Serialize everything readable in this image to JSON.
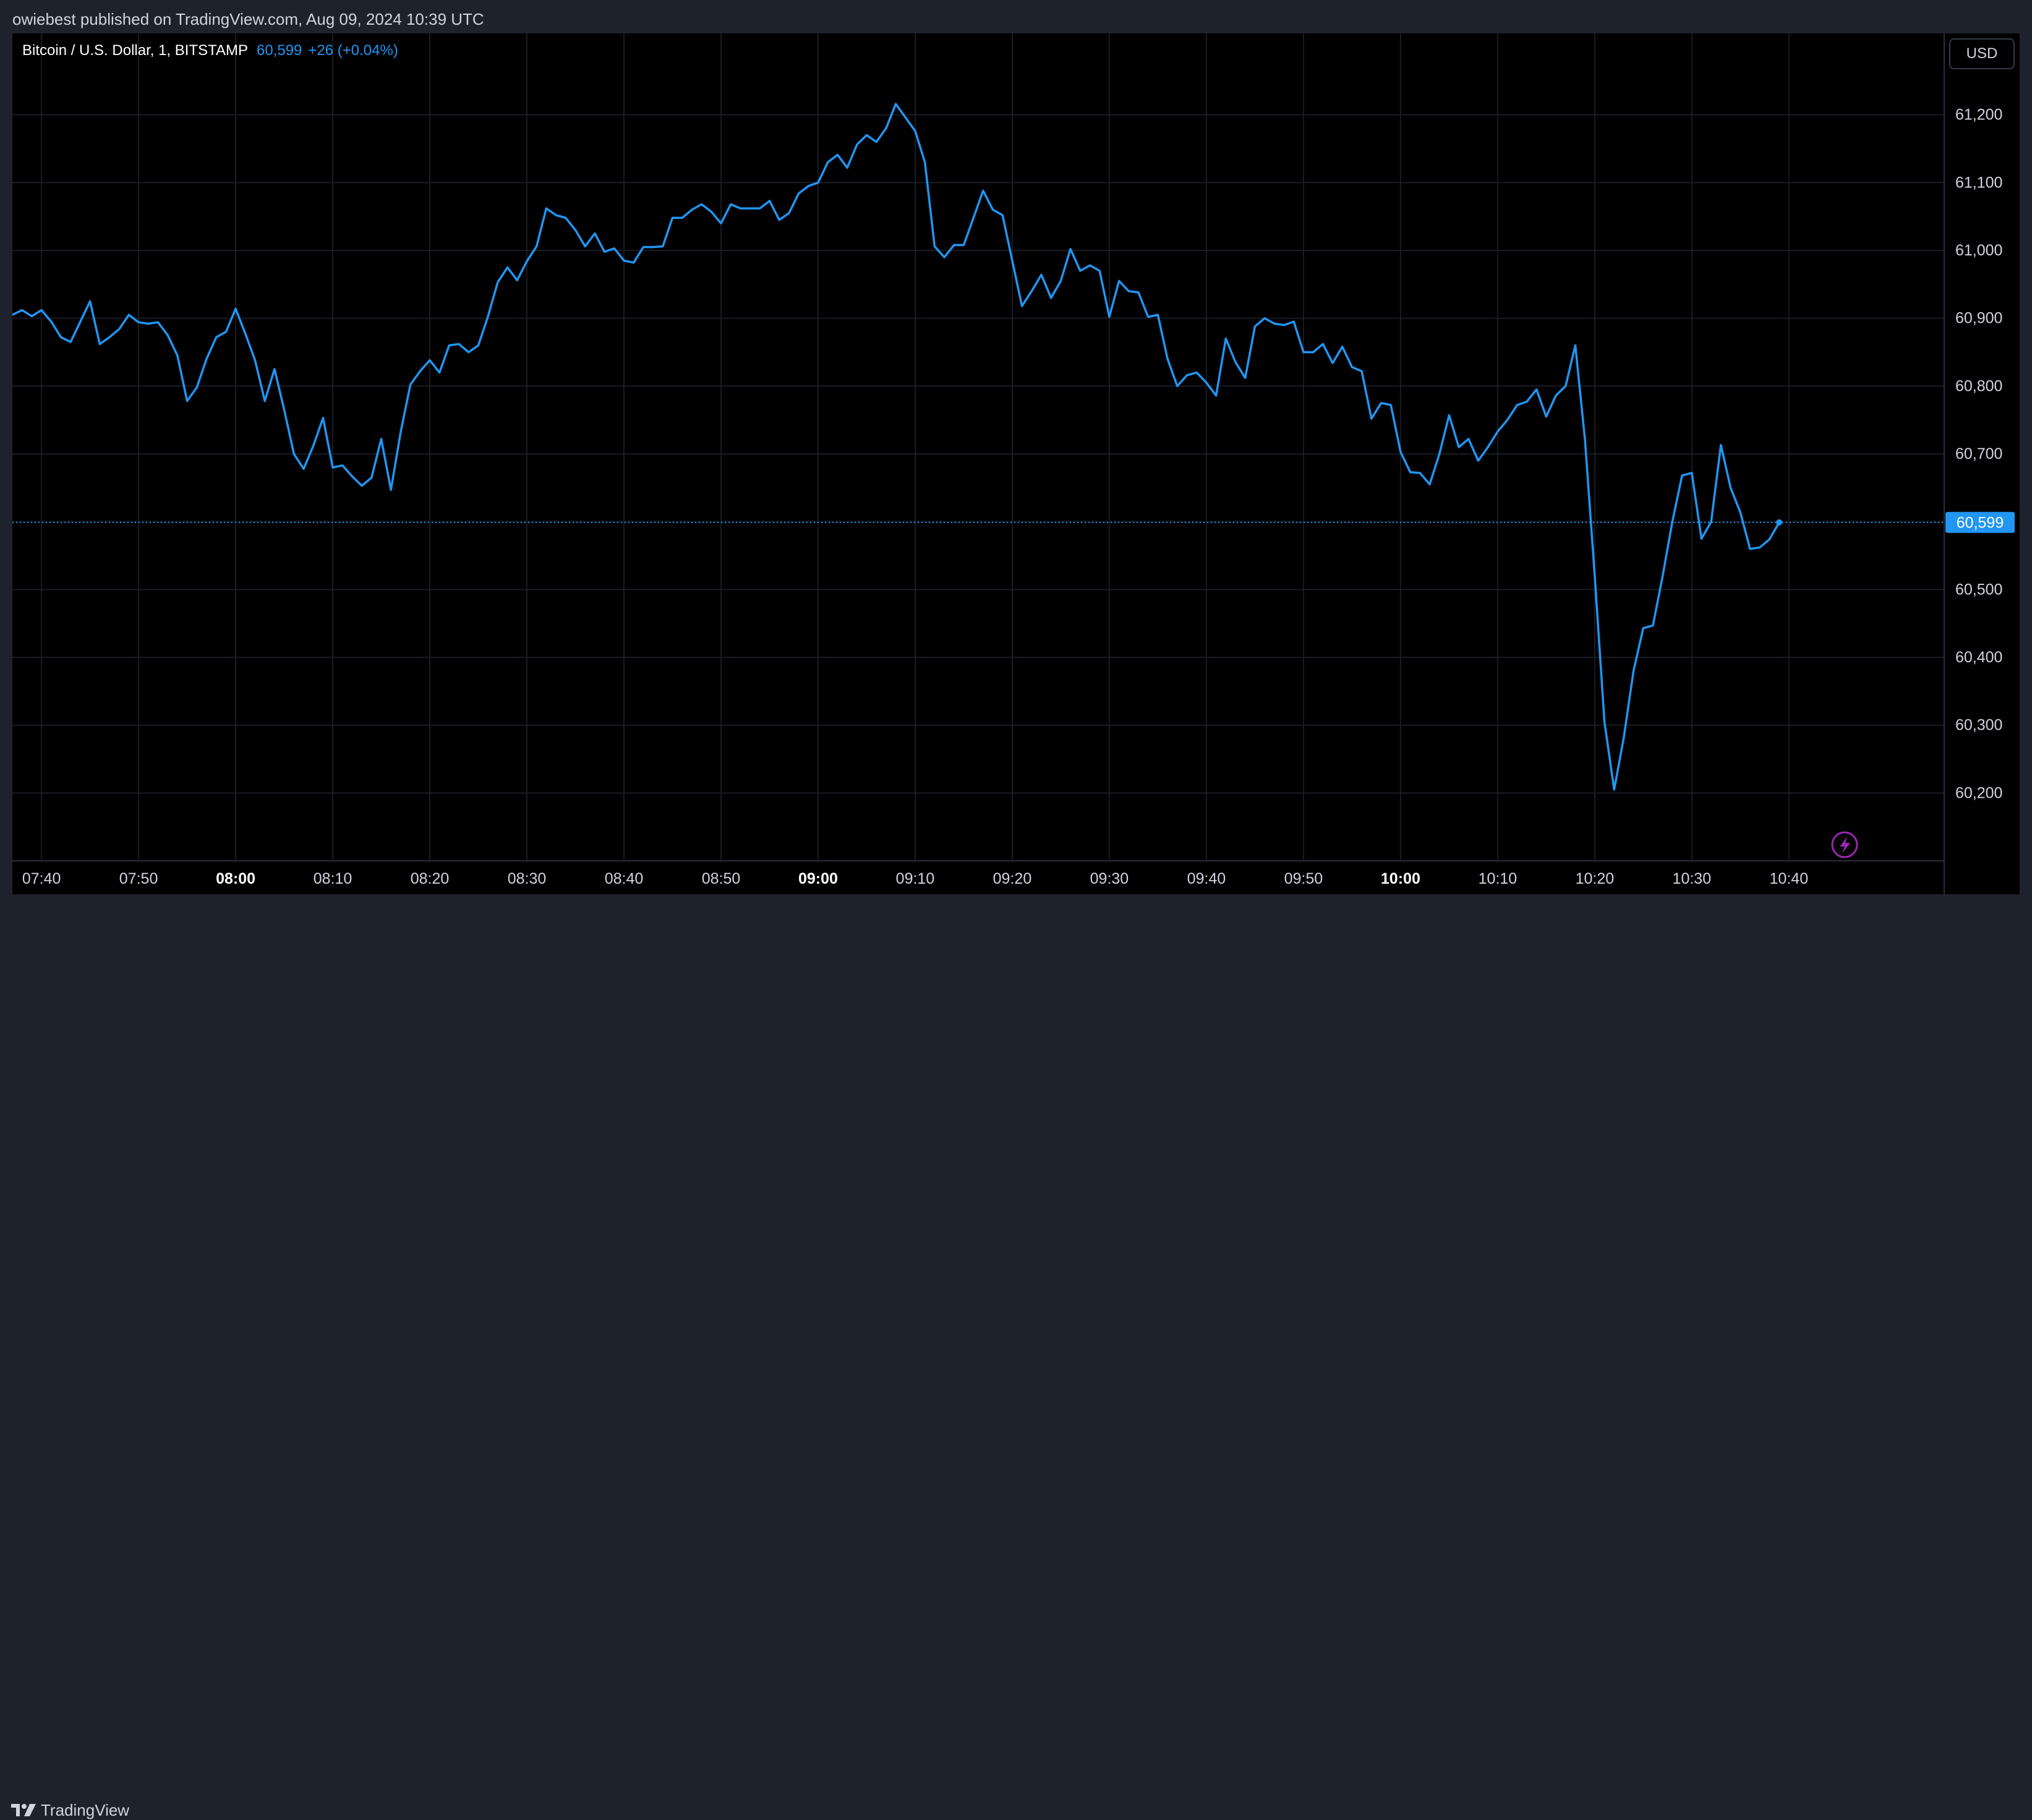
{
  "header": {
    "publish_line": "owiebest published on TradingView.com, Aug 09, 2024 10:39 UTC"
  },
  "legend": {
    "symbol": "Bitcoin / U.S. Dollar, 1, BITSTAMP",
    "price": "60,599",
    "change": "+26 (+0.04%)"
  },
  "currency_button": "USD",
  "footer": {
    "brand": "TradingView"
  },
  "colors": {
    "line": "#2196f3",
    "background": "#000000",
    "frame": "#1e222d",
    "grid": "#1a1c24",
    "text": "#d1d4dc",
    "last_price_label": "#2196f3",
    "lightning": "#9c27b0"
  },
  "icons": {
    "footer_logo": "tradingview-logo-icon",
    "lightning": "lightning-icon"
  },
  "chart_data": {
    "type": "line",
    "title": "Bitcoin / U.S. Dollar, 1, BITSTAMP",
    "xlabel": "",
    "ylabel": "",
    "ylim": [
      60100,
      61320
    ],
    "y_ticks": [
      60200,
      60300,
      60400,
      60500,
      60600,
      60700,
      60800,
      60900,
      61000,
      61100,
      61200
    ],
    "y_tick_labels": [
      "60,200",
      "60,300",
      "60,400",
      "60,500",
      "60,600",
      "60,700",
      "60,800",
      "60,900",
      "61,000",
      "61,100",
      "61,200"
    ],
    "x_ticks": [
      "07:40",
      "07:50",
      "08:00",
      "08:10",
      "08:20",
      "08:30",
      "08:40",
      "08:50",
      "09:00",
      "09:10",
      "09:20",
      "09:30",
      "09:40",
      "09:50",
      "10:00",
      "10:10",
      "10:20",
      "10:30",
      "10:40"
    ],
    "x_tick_bold": [
      "08:00",
      "09:00",
      "10:00"
    ],
    "xlim": [
      "07:37",
      "10:56"
    ],
    "grid": true,
    "last_price": 60599,
    "last_price_label": "60,599",
    "series": [
      {
        "points": [
          [
            "07:37",
            60905
          ],
          [
            "07:38",
            60912
          ],
          [
            "07:39",
            60903
          ],
          [
            "07:40",
            60912
          ],
          [
            "07:41",
            60895
          ],
          [
            "07:42",
            60872
          ],
          [
            "07:43",
            60865
          ],
          [
            "07:44",
            60895
          ],
          [
            "07:45",
            60925
          ],
          [
            "07:46",
            60862
          ],
          [
            "07:47",
            60872
          ],
          [
            "07:48",
            60884
          ],
          [
            "07:49",
            60905
          ],
          [
            "07:50",
            60894
          ],
          [
            "07:51",
            60892
          ],
          [
            "07:52",
            60894
          ],
          [
            "07:53",
            60875
          ],
          [
            "07:54",
            60845
          ],
          [
            "07:55",
            60778
          ],
          [
            "07:56",
            60798
          ],
          [
            "07:57",
            60840
          ],
          [
            "07:58",
            60872
          ],
          [
            "07:59",
            60880
          ],
          [
            "08:00",
            60914
          ],
          [
            "08:01",
            60877
          ],
          [
            "08:02",
            60838
          ],
          [
            "08:03",
            60778
          ],
          [
            "08:04",
            60825
          ],
          [
            "08:05",
            60765
          ],
          [
            "08:06",
            60700
          ],
          [
            "08:07",
            60678
          ],
          [
            "08:08",
            60712
          ],
          [
            "08:09",
            60753
          ],
          [
            "08:10",
            60680
          ],
          [
            "08:11",
            60683
          ],
          [
            "08:12",
            60667
          ],
          [
            "08:13",
            60653
          ],
          [
            "08:14",
            60665
          ],
          [
            "08:15",
            60722
          ],
          [
            "08:16",
            60647
          ],
          [
            "08:17",
            60732
          ],
          [
            "08:18",
            60802
          ],
          [
            "08:19",
            60822
          ],
          [
            "08:20",
            60838
          ],
          [
            "08:21",
            60820
          ],
          [
            "08:22",
            60860
          ],
          [
            "08:23",
            60862
          ],
          [
            "08:24",
            60850
          ],
          [
            "08:25",
            60860
          ],
          [
            "08:26",
            60903
          ],
          [
            "08:27",
            60953
          ],
          [
            "08:28",
            60975
          ],
          [
            "08:29",
            60956
          ],
          [
            "08:30",
            60984
          ],
          [
            "08:31",
            61006
          ],
          [
            "08:32",
            61062
          ],
          [
            "08:33",
            61052
          ],
          [
            "08:34",
            61048
          ],
          [
            "08:35",
            61030
          ],
          [
            "08:36",
            61006
          ],
          [
            "08:37",
            61025
          ],
          [
            "08:38",
            60998
          ],
          [
            "08:39",
            61003
          ],
          [
            "08:40",
            60985
          ],
          [
            "08:41",
            60982
          ],
          [
            "08:42",
            61005
          ],
          [
            "08:43",
            61005
          ],
          [
            "08:44",
            61006
          ],
          [
            "08:45",
            61048
          ],
          [
            "08:46",
            61048
          ],
          [
            "08:47",
            61060
          ],
          [
            "08:48",
            61068
          ],
          [
            "08:49",
            61057
          ],
          [
            "08:50",
            61040
          ],
          [
            "08:51",
            61068
          ],
          [
            "08:52",
            61062
          ],
          [
            "08:53",
            61062
          ],
          [
            "08:54",
            61062
          ],
          [
            "08:55",
            61073
          ],
          [
            "08:56",
            61045
          ],
          [
            "08:57",
            61055
          ],
          [
            "08:58",
            61084
          ],
          [
            "08:59",
            61095
          ],
          [
            "09:00",
            61100
          ],
          [
            "09:01",
            61130
          ],
          [
            "09:02",
            61141
          ],
          [
            "09:03",
            61122
          ],
          [
            "09:04",
            61156
          ],
          [
            "09:05",
            61170
          ],
          [
            "09:06",
            61160
          ],
          [
            "09:07",
            61180
          ],
          [
            "09:08",
            61216
          ],
          [
            "09:09",
            61196
          ],
          [
            "09:10",
            61176
          ],
          [
            "09:11",
            61130
          ],
          [
            "09:12",
            61006
          ],
          [
            "09:13",
            60990
          ],
          [
            "09:14",
            61008
          ],
          [
            "09:15",
            61008
          ],
          [
            "09:16",
            61048
          ],
          [
            "09:17",
            61088
          ],
          [
            "09:18",
            61060
          ],
          [
            "09:19",
            61052
          ],
          [
            "09:20",
            60985
          ],
          [
            "09:21",
            60918
          ],
          [
            "09:22",
            60940
          ],
          [
            "09:23",
            60964
          ],
          [
            "09:24",
            60930
          ],
          [
            "09:25",
            60955
          ],
          [
            "09:26",
            61002
          ],
          [
            "09:27",
            60970
          ],
          [
            "09:28",
            60978
          ],
          [
            "09:29",
            60970
          ],
          [
            "09:30",
            60902
          ],
          [
            "09:31",
            60955
          ],
          [
            "09:32",
            60940
          ],
          [
            "09:33",
            60938
          ],
          [
            "09:34",
            60902
          ],
          [
            "09:35",
            60905
          ],
          [
            "09:36",
            60840
          ],
          [
            "09:37",
            60800
          ],
          [
            "09:38",
            60816
          ],
          [
            "09:39",
            60820
          ],
          [
            "09:40",
            60805
          ],
          [
            "09:41",
            60786
          ],
          [
            "09:42",
            60870
          ],
          [
            "09:43",
            60835
          ],
          [
            "09:44",
            60812
          ],
          [
            "09:45",
            60888
          ],
          [
            "09:46",
            60900
          ],
          [
            "09:47",
            60892
          ],
          [
            "09:48",
            60890
          ],
          [
            "09:49",
            60895
          ],
          [
            "09:50",
            60850
          ],
          [
            "09:51",
            60850
          ],
          [
            "09:52",
            60862
          ],
          [
            "09:53",
            60834
          ],
          [
            "09:54",
            60858
          ],
          [
            "09:55",
            60828
          ],
          [
            "09:56",
            60822
          ],
          [
            "09:57",
            60752
          ],
          [
            "09:58",
            60775
          ],
          [
            "09:59",
            60772
          ],
          [
            "10:00",
            60703
          ],
          [
            "10:01",
            60673
          ],
          [
            "10:02",
            60672
          ],
          [
            "10:03",
            60655
          ],
          [
            "10:04",
            60700
          ],
          [
            "10:05",
            60757
          ],
          [
            "10:06",
            60710
          ],
          [
            "10:07",
            60722
          ],
          [
            "10:08",
            60690
          ],
          [
            "10:09",
            60710
          ],
          [
            "10:10",
            60733
          ],
          [
            "10:11",
            60750
          ],
          [
            "10:12",
            60772
          ],
          [
            "10:13",
            60777
          ],
          [
            "10:14",
            60795
          ],
          [
            "10:15",
            60755
          ],
          [
            "10:16",
            60786
          ],
          [
            "10:17",
            60800
          ],
          [
            "10:18",
            60860
          ],
          [
            "10:19",
            60720
          ],
          [
            "10:20",
            60520
          ],
          [
            "10:21",
            60305
          ],
          [
            "10:22",
            60205
          ],
          [
            "10:23",
            60282
          ],
          [
            "10:24",
            60380
          ],
          [
            "10:25",
            60443
          ],
          [
            "10:26",
            60447
          ],
          [
            "10:27",
            60520
          ],
          [
            "10:28",
            60600
          ],
          [
            "10:29",
            60668
          ],
          [
            "10:30",
            60672
          ],
          [
            "10:31",
            60575
          ],
          [
            "10:32",
            60600
          ],
          [
            "10:33",
            60713
          ],
          [
            "10:34",
            60650
          ],
          [
            "10:35",
            60614
          ],
          [
            "10:36",
            60560
          ],
          [
            "10:37",
            60562
          ],
          [
            "10:38",
            60574
          ],
          [
            "10:39",
            60599
          ]
        ]
      }
    ]
  }
}
